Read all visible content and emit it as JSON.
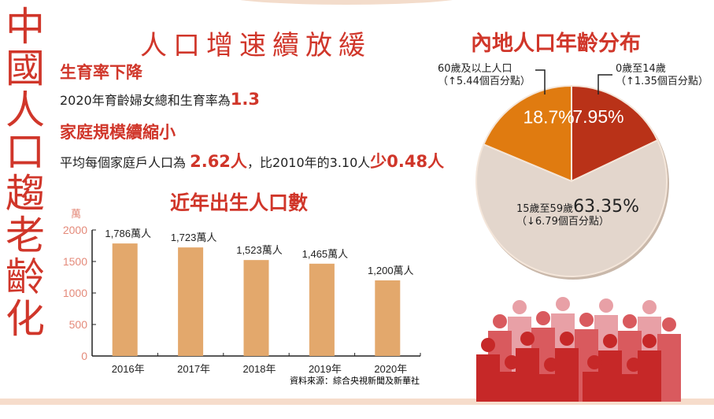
{
  "title_vertical": [
    "中",
    "國",
    "人",
    "口",
    "趨",
    "老",
    "齡",
    "化"
  ],
  "subtitle": "人口增速續放緩",
  "section1": {
    "heading": "生育率下降",
    "text": "2020年育齡婦女總和生育率為",
    "value": "1.3"
  },
  "section2": {
    "heading": "家庭規模續縮小",
    "text1": "平均每個家庭戶人口為",
    "value1": "2.62人",
    "text2": "，比2010年的3.10人",
    "value2": "少0.48人"
  },
  "colors": {
    "accent": "#d0362a",
    "bar": "#e3a86c",
    "pie_young": "#b93218",
    "pie_working": "#e3d6cc",
    "pie_old": "#e07b10"
  },
  "chart_data": [
    {
      "type": "bar",
      "title": "近年出生人口數",
      "ylabel": "萬",
      "categories": [
        "2016年",
        "2017年",
        "2018年",
        "2019年",
        "2020年"
      ],
      "values": [
        1786,
        1723,
        1523,
        1465,
        1200
      ],
      "data_labels": [
        "1,786萬人",
        "1,723萬人",
        "1,523萬人",
        "1,465萬人",
        "1,200萬人"
      ],
      "yticks": [
        "0",
        "500",
        "1000",
        "1500",
        "2000"
      ],
      "ylim": [
        0,
        2000
      ],
      "grid": false,
      "source": "資料來源：綜合央視新聞及新華社"
    },
    {
      "type": "pie",
      "title": "內地人口年齡分布",
      "slices": [
        {
          "label": "0歲至14歲",
          "value": 17.95,
          "value_label": "17.95%",
          "change": "（↑1.35個百分點）",
          "color": "#b93218"
        },
        {
          "label": "15歲至59歲",
          "value": 63.35,
          "value_label": "63.35%",
          "change": "（↓6.79個百分點）",
          "color": "#e3d6cc"
        },
        {
          "label": "60歲及以上人口",
          "value": 18.7,
          "value_label": "18.7%",
          "change": "（↑5.44個百分點）",
          "color": "#e07b10"
        }
      ]
    }
  ]
}
